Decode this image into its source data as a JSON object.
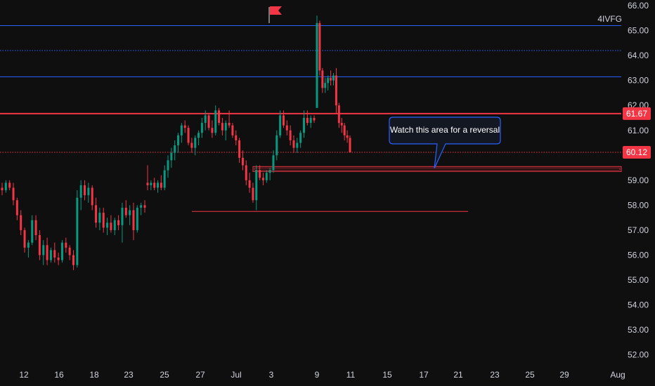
{
  "chart_data": {
    "type": "candlestick",
    "symbol": "4IVFG",
    "y_ticks": [
      "66.00",
      "65.00",
      "64.00",
      "63.00",
      "62.00",
      "61.00",
      "59.00",
      "58.00",
      "57.00",
      "56.00",
      "55.00",
      "54.00",
      "53.00",
      "52.00"
    ],
    "x_ticks": [
      "12",
      "16",
      "18",
      "23",
      "25",
      "27",
      "Jul",
      "3",
      "9",
      "11",
      "15",
      "17",
      "21",
      "23",
      "25",
      "29",
      "Aug"
    ],
    "ylim": [
      51.7,
      66.2
    ],
    "grid": false,
    "price_labels": [
      {
        "value": 61.67,
        "label": "61.67"
      },
      {
        "value": 60.12,
        "label": "60.12"
      }
    ],
    "horizontal_levels": [
      {
        "value": 65.2,
        "style": "solid",
        "color": "#2962ff"
      },
      {
        "value": 64.2,
        "style": "dotted",
        "color": "#2962ff"
      },
      {
        "value": 63.15,
        "style": "solid",
        "color": "#2962ff"
      },
      {
        "value": 61.67,
        "style": "solid",
        "color": "#f23645"
      },
      {
        "value": 60.12,
        "style": "dotted",
        "color": "#f23645"
      },
      {
        "value": 57.75,
        "style": "solid",
        "color": "#f23645"
      }
    ],
    "zone": {
      "top": 59.55,
      "bottom": 59.35
    },
    "annotation": "Watch this area for a reversal",
    "candles": [
      [
        58.7,
        58.9,
        58.4,
        58.6
      ],
      [
        58.6,
        59.0,
        58.5,
        58.9
      ],
      [
        58.9,
        59.0,
        58.6,
        58.7
      ],
      [
        58.7,
        58.9,
        58.0,
        58.2
      ],
      [
        58.2,
        58.3,
        57.4,
        57.6
      ],
      [
        57.6,
        57.8,
        56.8,
        57.0
      ],
      [
        57.0,
        57.1,
        56.1,
        56.3
      ],
      [
        56.3,
        56.6,
        55.9,
        56.5
      ],
      [
        56.5,
        57.6,
        56.4,
        57.4
      ],
      [
        57.4,
        57.6,
        56.6,
        56.8
      ],
      [
        56.8,
        57.0,
        55.8,
        56.0
      ],
      [
        56.0,
        56.6,
        55.6,
        56.4
      ],
      [
        56.4,
        56.7,
        55.6,
        55.8
      ],
      [
        55.8,
        56.3,
        55.7,
        56.2
      ],
      [
        56.2,
        56.5,
        55.7,
        55.9
      ],
      [
        55.9,
        56.1,
        55.6,
        55.8
      ],
      [
        55.8,
        56.6,
        55.7,
        56.5
      ],
      [
        56.5,
        56.7,
        56.1,
        56.3
      ],
      [
        56.3,
        56.4,
        55.8,
        56.0
      ],
      [
        56.0,
        56.2,
        55.4,
        55.6
      ],
      [
        55.6,
        58.6,
        55.5,
        58.3
      ],
      [
        58.3,
        59.0,
        57.8,
        58.8
      ],
      [
        58.8,
        59.0,
        58.2,
        58.4
      ],
      [
        58.4,
        58.9,
        58.1,
        58.7
      ],
      [
        58.7,
        58.8,
        57.8,
        58.0
      ],
      [
        58.0,
        58.3,
        57.1,
        57.3
      ],
      [
        57.3,
        57.9,
        57.0,
        57.7
      ],
      [
        57.7,
        57.9,
        56.9,
        57.1
      ],
      [
        57.1,
        57.5,
        56.8,
        57.3
      ],
      [
        57.3,
        57.6,
        56.9,
        57.0
      ],
      [
        57.0,
        57.5,
        56.8,
        57.4
      ],
      [
        57.4,
        57.6,
        57.0,
        57.2
      ],
      [
        57.2,
        58.1,
        56.5,
        57.9
      ],
      [
        57.9,
        58.2,
        57.5,
        57.6
      ],
      [
        57.6,
        58.0,
        57.2,
        57.8
      ],
      [
        57.8,
        58.1,
        56.6,
        57.0
      ],
      [
        57.0,
        58.0,
        56.9,
        57.9
      ],
      [
        57.9,
        58.1,
        57.6,
        58.0
      ],
      [
        58.0,
        58.2,
        57.7,
        57.9
      ],
      [
        58.9,
        59.6,
        58.6,
        58.8
      ],
      [
        58.8,
        59.0,
        58.6,
        58.9
      ],
      [
        58.9,
        59.1,
        58.6,
        58.7
      ],
      [
        58.7,
        59.0,
        58.5,
        58.9
      ],
      [
        58.9,
        59.2,
        58.6,
        58.7
      ],
      [
        58.7,
        59.6,
        58.6,
        59.4
      ],
      [
        59.4,
        60.0,
        59.1,
        59.8
      ],
      [
        59.8,
        60.3,
        59.5,
        60.1
      ],
      [
        60.1,
        60.6,
        59.8,
        60.4
      ],
      [
        60.4,
        60.9,
        60.1,
        60.8
      ],
      [
        60.8,
        61.3,
        60.5,
        61.2
      ],
      [
        61.2,
        61.4,
        60.9,
        61.1
      ],
      [
        61.1,
        61.2,
        60.4,
        60.5
      ],
      [
        60.5,
        60.7,
        60.1,
        60.3
      ],
      [
        60.3,
        60.8,
        60.0,
        60.7
      ],
      [
        60.7,
        61.0,
        60.4,
        60.9
      ],
      [
        60.9,
        61.5,
        60.7,
        61.3
      ],
      [
        61.3,
        61.8,
        61.0,
        61.6
      ],
      [
        61.6,
        61.7,
        61.0,
        61.1
      ],
      [
        61.1,
        61.4,
        60.7,
        60.9
      ],
      [
        60.9,
        62.0,
        60.8,
        61.8
      ],
      [
        61.8,
        61.9,
        61.2,
        61.3
      ],
      [
        61.3,
        61.5,
        60.8,
        61.0
      ],
      [
        61.0,
        61.4,
        60.6,
        61.3
      ],
      [
        61.3,
        61.8,
        61.1,
        61.2
      ],
      [
        61.2,
        61.3,
        60.7,
        60.8
      ],
      [
        60.8,
        61.0,
        60.4,
        60.6
      ],
      [
        60.6,
        60.7,
        59.7,
        59.9
      ],
      [
        59.9,
        60.2,
        59.4,
        59.6
      ],
      [
        59.6,
        59.8,
        58.8,
        59.0
      ],
      [
        59.0,
        59.3,
        58.5,
        58.7
      ],
      [
        58.7,
        58.9,
        58.1,
        58.2
      ],
      [
        58.2,
        59.6,
        57.8,
        59.4
      ],
      [
        59.4,
        59.6,
        59.0,
        59.1
      ],
      [
        59.1,
        59.3,
        58.8,
        59.0
      ],
      [
        59.0,
        59.4,
        58.9,
        59.3
      ],
      [
        59.3,
        59.5,
        59.0,
        59.4
      ],
      [
        59.4,
        60.2,
        59.3,
        60.0
      ],
      [
        60.0,
        61.0,
        59.8,
        60.8
      ],
      [
        60.8,
        61.8,
        60.7,
        61.6
      ],
      [
        61.6,
        61.8,
        61.1,
        61.2
      ],
      [
        61.2,
        61.4,
        60.8,
        61.0
      ],
      [
        61.0,
        61.2,
        60.4,
        60.6
      ],
      [
        60.6,
        60.8,
        60.1,
        60.3
      ],
      [
        60.3,
        60.7,
        60.1,
        60.5
      ],
      [
        60.5,
        61.0,
        60.3,
        60.9
      ],
      [
        60.9,
        61.8,
        60.7,
        61.5
      ],
      [
        61.5,
        61.8,
        61.2,
        61.3
      ],
      [
        61.3,
        61.6,
        61.1,
        61.5
      ],
      [
        61.5,
        61.6,
        61.3,
        61.4
      ],
      [
        61.9,
        65.6,
        61.9,
        65.3
      ],
      [
        65.3,
        65.4,
        63.2,
        63.4
      ],
      [
        63.4,
        63.5,
        62.5,
        62.7
      ],
      [
        62.7,
        63.1,
        62.5,
        62.9
      ],
      [
        62.9,
        63.2,
        62.6,
        63.1
      ],
      [
        63.1,
        63.4,
        62.8,
        63.0
      ],
      [
        63.0,
        63.3,
        62.8,
        63.2
      ],
      [
        63.2,
        63.5,
        61.7,
        62.0
      ],
      [
        62.0,
        62.1,
        61.1,
        61.3
      ],
      [
        61.3,
        61.5,
        60.9,
        61.2
      ],
      [
        61.2,
        61.3,
        60.6,
        60.8
      ],
      [
        60.8,
        61.0,
        60.5,
        60.7
      ],
      [
        60.7,
        60.8,
        60.1,
        60.12
      ]
    ]
  }
}
